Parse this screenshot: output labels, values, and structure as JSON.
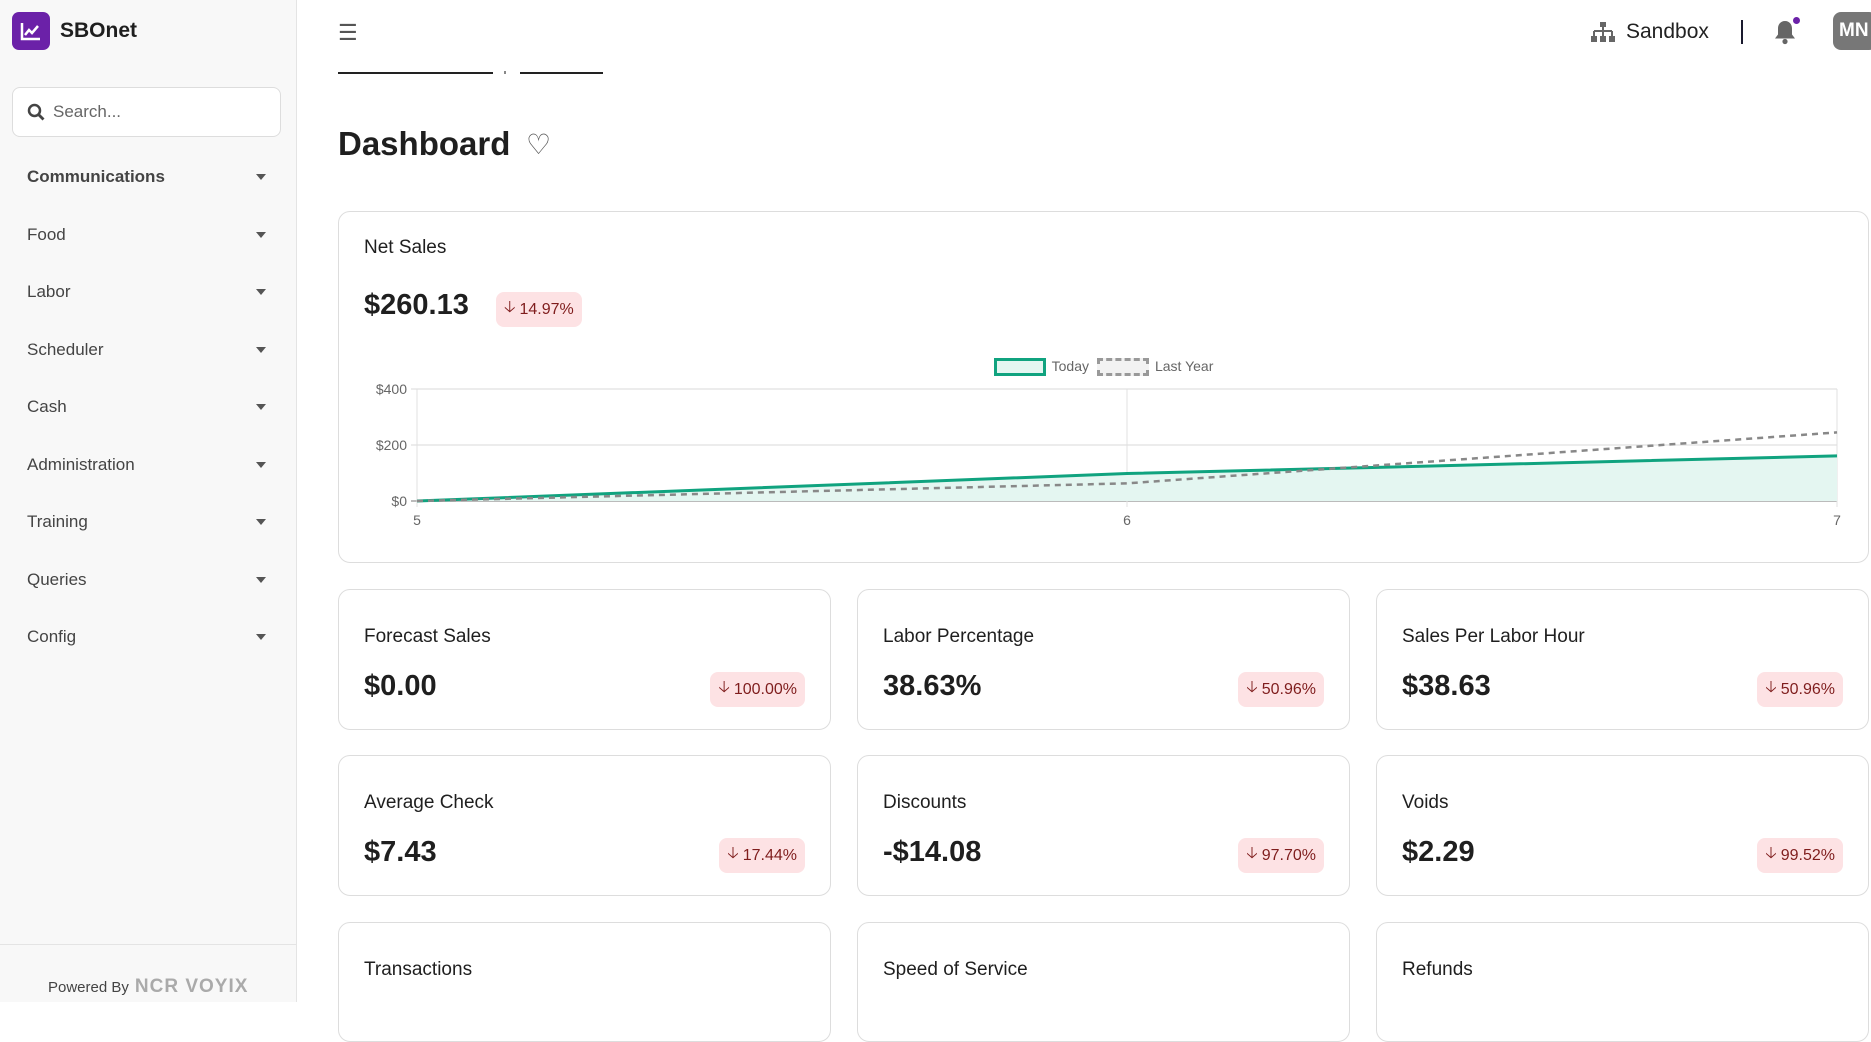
{
  "app": {
    "name": "SBOnet",
    "logo_icon": "chart-line-icon",
    "brand_color": "#6b21a8"
  },
  "sidebar": {
    "search_placeholder": "Search...",
    "items": [
      {
        "label": "Communications"
      },
      {
        "label": "Food"
      },
      {
        "label": "Labor"
      },
      {
        "label": "Scheduler"
      },
      {
        "label": "Cash"
      },
      {
        "label": "Administration"
      },
      {
        "label": "Training"
      },
      {
        "label": "Queries"
      },
      {
        "label": "Config"
      }
    ],
    "footer": {
      "powered_by": "Powered By",
      "vendor": "NCR VOYIX"
    }
  },
  "header": {
    "environment": "Sandbox",
    "avatar_initials": "MN"
  },
  "page": {
    "title": "Dashboard"
  },
  "net_sales": {
    "title": "Net Sales",
    "value": "$260.13",
    "change": "14.97%",
    "direction": "down"
  },
  "chart_data": {
    "type": "line",
    "x": [
      5,
      6,
      7
    ],
    "series": [
      {
        "name": "Today",
        "values": [
          0,
          98,
          161
        ],
        "color": "#10a37f",
        "style": "solid",
        "fill": true
      },
      {
        "name": "Last Year",
        "values": [
          0,
          63,
          245
        ],
        "color": "#888888",
        "style": "dashed",
        "fill": false
      }
    ],
    "yticks": [
      "$0",
      "$200",
      "$400"
    ],
    "ylim": [
      0,
      400
    ],
    "xticks": [
      "5",
      "6",
      "7"
    ],
    "grid": true,
    "legend": "top-center"
  },
  "cards": [
    {
      "title": "Forecast Sales",
      "value": "$0.00",
      "change": "100.00%"
    },
    {
      "title": "Labor Percentage",
      "value": "38.63%",
      "change": "50.96%"
    },
    {
      "title": "Sales Per Labor Hour",
      "value": "$38.63",
      "change": "50.96%"
    },
    {
      "title": "Average Check",
      "value": "$7.43",
      "change": "17.44%"
    },
    {
      "title": "Discounts",
      "value": "-$14.08",
      "change": "97.70%"
    },
    {
      "title": "Voids",
      "value": "$2.29",
      "change": "99.52%"
    },
    {
      "title": "Transactions"
    },
    {
      "title": "Speed of Service"
    },
    {
      "title": "Refunds"
    }
  ],
  "colors": {
    "badge_bg": "#fde2e4",
    "badge_text": "#7f1d1d"
  }
}
